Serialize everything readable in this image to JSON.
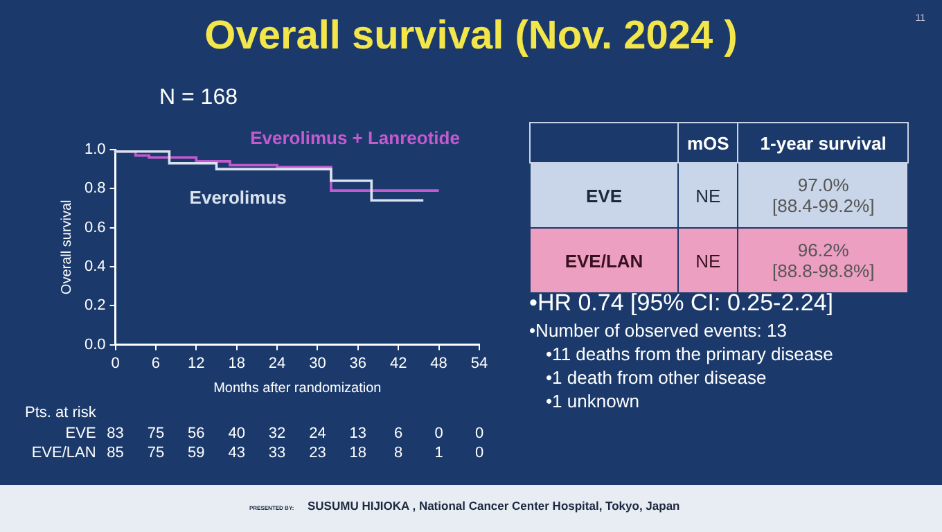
{
  "chart_data": {
    "type": "step",
    "title": "Overall survival (Nov. 2024 )",
    "subtitle": "N = 168",
    "xlabel": "Months after randomization",
    "ylabel": "Overall survival",
    "xlim": [
      0,
      54
    ],
    "xticks": [
      0,
      6,
      12,
      18,
      24,
      30,
      36,
      42,
      48,
      54
    ],
    "ylim": [
      0,
      1
    ],
    "yticks": [
      {
        "value": 0,
        "label": "0.0"
      },
      {
        "value": 0.2,
        "label": "0.2"
      },
      {
        "value": 0.4,
        "label": "0.4"
      },
      {
        "value": 0.6,
        "label": "0.6"
      },
      {
        "value": 0.8,
        "label": "0.8"
      },
      {
        "value": 1,
        "label": "1.0"
      }
    ],
    "grid": false,
    "legend": false,
    "series": [
      {
        "name": "Everolimus",
        "color": "#d9e2ee",
        "x": [
          0,
          8,
          15,
          32,
          38,
          38.5,
          45.7
        ],
        "values": [
          1,
          0.99,
          0.93,
          0.9,
          0.84,
          0.74,
          0.74
        ]
      },
      {
        "name": "Everolimus + Lanreotide",
        "color": "#c45ad0",
        "x": [
          0,
          3,
          5,
          12,
          17,
          24,
          32,
          45,
          48
        ],
        "values": [
          1,
          0.99,
          0.97,
          0.96,
          0.94,
          0.92,
          0.91,
          0.79,
          0.79
        ]
      }
    ],
    "annotations": [
      "Pts. at risk",
      "EVE 83 75 56 40 32 24 13 6 0 0",
      "EVE/LAN 85 75 59 43 33 23 18 8 1 0",
      "mOS",
      "1-year survival",
      "EVE",
      "NE",
      "97.0%\n[88.4-99.2%]",
      "EVE/LAN",
      "NE",
      "96.2%\n[88.8-98.8%]",
      "•HR 0.74  [95% CI: 0.25-2.24]",
      "•Number of observed events: 13",
      "•11 deaths from the primary disease",
      "•1 death from other disease",
      "•1 unknown",
      "11",
      "PRESENTED BY:",
      "SUSUMU HIJIOKA , National Cancer Center Hospital, Tokyo, Japan"
    ]
  }
}
